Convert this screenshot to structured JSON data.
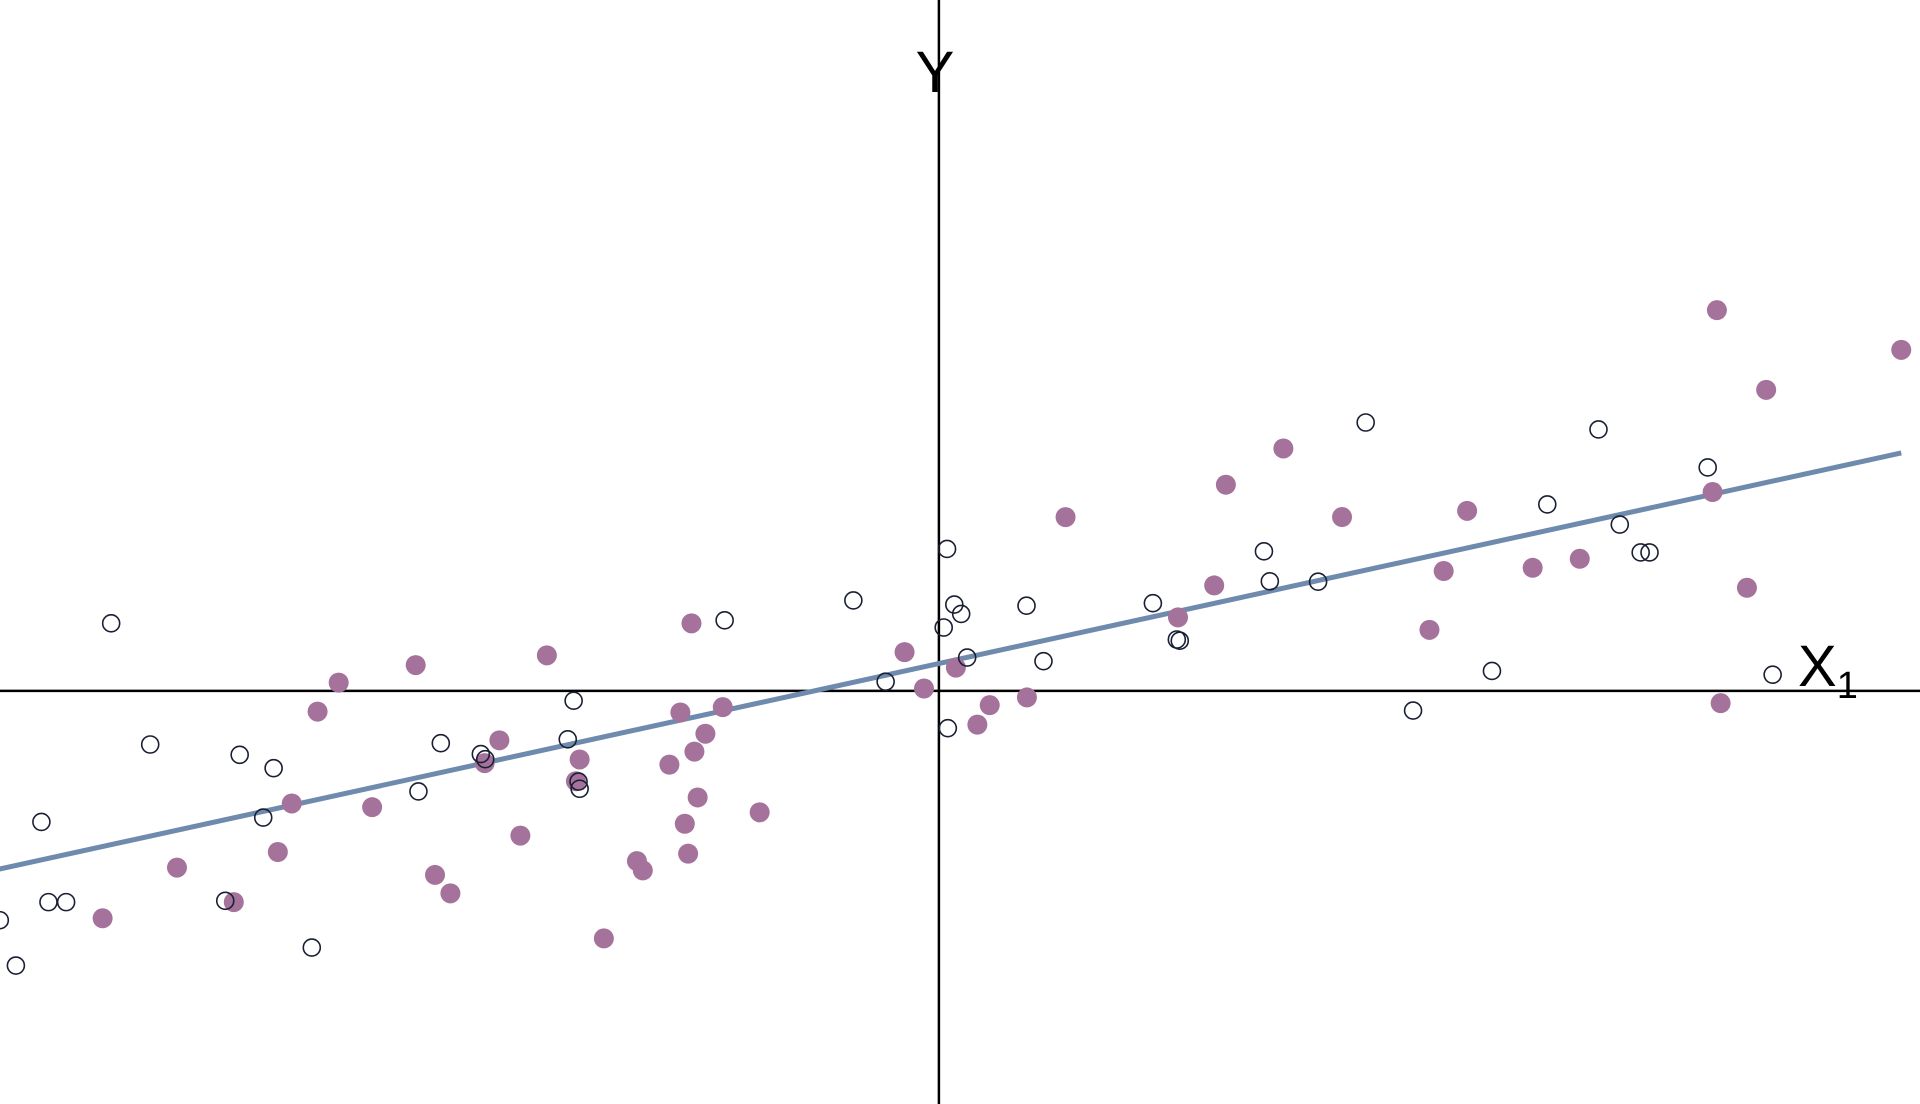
{
  "chart_data": {
    "type": "scatter",
    "title": "",
    "xlabel": "X",
    "xlabel_subscript": "1",
    "ylabel": "Y",
    "xlim": [
      -0.957,
      1.0
    ],
    "ylim": [
      -0.5135,
      0.8586
    ],
    "grid": false,
    "legend": "none",
    "colors": {
      "axis": "#000000",
      "filled": "#A5729B",
      "hollow_stroke": "#1A2033",
      "fit_line": "#6E8AAD",
      "background": "#FFFFFF"
    },
    "series": [
      {
        "marker": "filled",
        "points": [
          [
            -0.8524,
            -0.2827
          ],
          [
            -0.7766,
            -0.2197
          ],
          [
            -0.7187,
            -0.2626
          ],
          [
            -0.6738,
            -0.2003
          ],
          [
            -0.6596,
            -0.14
          ],
          [
            -0.6333,
            -0.0258
          ],
          [
            -0.6118,
            0.0102
          ],
          [
            -0.5777,
            -0.1446
          ],
          [
            -0.5333,
            0.032
          ],
          [
            -0.5136,
            -0.2288
          ],
          [
            -0.4979,
            -0.2517
          ],
          [
            -0.463,
            -0.0898
          ],
          [
            -0.448,
            -0.0615
          ],
          [
            -0.4266,
            -0.1799
          ],
          [
            -0.3996,
            0.0441
          ],
          [
            -0.37,
            -0.1123
          ],
          [
            -0.3662,
            -0.0853
          ],
          [
            -0.3415,
            -0.3077
          ],
          [
            -0.3078,
            -0.2116
          ],
          [
            -0.3018,
            -0.2232
          ],
          [
            -0.2747,
            -0.0917
          ],
          [
            -0.2635,
            -0.0269
          ],
          [
            -0.259,
            -0.1652
          ],
          [
            -0.2556,
            -0.2024
          ],
          [
            -0.2522,
            0.0839
          ],
          [
            -0.2492,
            -0.0755
          ],
          [
            -0.2459,
            -0.1325
          ],
          [
            -0.238,
            -0.0533
          ],
          [
            -0.2203,
            -0.0203
          ],
          [
            -0.1827,
            -0.151
          ],
          [
            -0.035,
            0.0481
          ],
          [
            -0.0152,
            0.0029
          ],
          [
            0.0173,
            0.0289
          ],
          [
            0.0392,
            -0.042
          ],
          [
            0.0518,
            -0.0178
          ],
          [
            0.0897,
            -0.0082
          ],
          [
            0.1291,
            0.2159
          ],
          [
            0.2437,
            0.0913
          ],
          [
            0.2806,
            0.131
          ],
          [
            0.2925,
            0.2562
          ],
          [
            0.3511,
            0.3012
          ],
          [
            0.4109,
            0.216
          ],
          [
            0.5,
            0.0758
          ],
          [
            0.5145,
            0.1489
          ],
          [
            0.5384,
            0.2237
          ],
          [
            0.6052,
            0.1529
          ],
          [
            0.6532,
            0.1641
          ],
          [
            0.7886,
            0.2471
          ],
          [
            0.793,
            0.4731
          ],
          [
            0.7968,
            -0.0153
          ],
          [
            0.8236,
            0.1281
          ],
          [
            0.8432,
            0.3741
          ],
          [
            0.9809,
            0.4238
          ]
        ]
      },
      {
        "marker": "hollow",
        "points": [
          [
            -0.9757,
            -0.3464
          ],
          [
            -0.9572,
            -0.2851
          ],
          [
            -0.9408,
            -0.3414
          ],
          [
            -0.9148,
            -0.1629
          ],
          [
            -0.9076,
            -0.2626
          ],
          [
            -0.8896,
            -0.2626
          ],
          [
            -0.8437,
            0.0839
          ],
          [
            -0.8039,
            -0.0667
          ],
          [
            -0.7274,
            -0.261
          ],
          [
            -0.7127,
            -0.0795
          ],
          [
            -0.6887,
            -0.1575
          ],
          [
            -0.6781,
            -0.0961
          ],
          [
            -0.6392,
            -0.3191
          ],
          [
            -0.5305,
            -0.125
          ],
          [
            -0.5077,
            -0.0651
          ],
          [
            -0.4669,
            -0.0786
          ],
          [
            -0.4624,
            -0.085
          ],
          [
            -0.3783,
            -0.0603
          ],
          [
            -0.3723,
            -0.0123
          ],
          [
            -0.3673,
            -0.1128
          ],
          [
            -0.3662,
            -0.1217
          ],
          [
            -0.2184,
            0.0876
          ],
          [
            -0.0872,
            0.1124
          ],
          [
            -0.0543,
            0.0114
          ],
          [
            0.0049,
            0.0787
          ],
          [
            0.0083,
            0.1763
          ],
          [
            0.0157,
            0.1072
          ],
          [
            0.0227,
            0.0956
          ],
          [
            0.0288,
            0.0414
          ],
          [
            0.0091,
            -0.0464
          ],
          [
            0.0893,
            0.1058
          ],
          [
            0.1066,
            0.0369
          ],
          [
            0.2181,
            0.1089
          ],
          [
            0.2425,
            0.0638
          ],
          [
            0.2455,
            0.0623
          ],
          [
            0.3313,
            0.1734
          ],
          [
            0.3373,
            0.1361
          ],
          [
            0.3865,
            0.1356
          ],
          [
            0.435,
            0.3335
          ],
          [
            0.4833,
            -0.0245
          ],
          [
            0.5637,
            0.0247
          ],
          [
            0.6201,
            0.2317
          ],
          [
            0.6723,
            0.3249
          ],
          [
            0.694,
            0.2067
          ],
          [
            0.7153,
            0.172
          ],
          [
            0.7243,
            0.172
          ],
          [
            0.7836,
            0.2776
          ],
          [
            0.8498,
            0.0201
          ]
        ]
      }
    ],
    "fit_line": {
      "x": [
        -0.9757,
        0.9809
      ],
      "y": [
        -0.2264,
        0.2956
      ]
    }
  }
}
